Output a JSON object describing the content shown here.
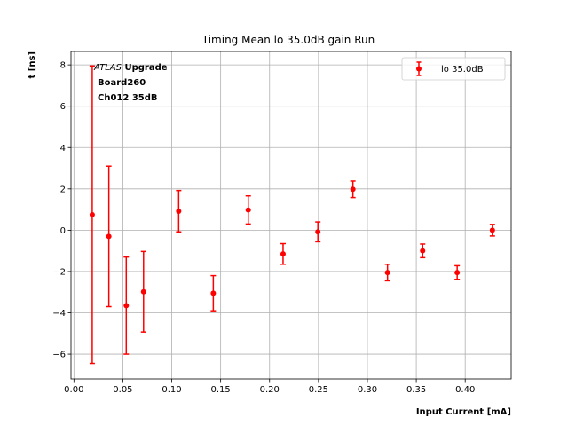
{
  "chart_data": {
    "type": "scatter",
    "title": "Timing Mean lo 35.0dB gain Run",
    "xlabel": "Input Current [mA]",
    "ylabel": "t [ns]",
    "xlim": [
      -0.003,
      0.447
    ],
    "ylim": [
      -7.2,
      8.65
    ],
    "xticks": [
      "0.00",
      "0.05",
      "0.10",
      "0.15",
      "0.20",
      "0.25",
      "0.30",
      "0.35",
      "0.40"
    ],
    "yticks": [
      "−6",
      "−4",
      "−2",
      "0",
      "2",
      "4",
      "6",
      "8"
    ],
    "xtick_values": [
      0.0,
      0.05,
      0.1,
      0.15,
      0.2,
      0.25,
      0.3,
      0.35,
      0.4
    ],
    "ytick_values": [
      -6,
      -4,
      -2,
      0,
      2,
      4,
      6,
      8
    ],
    "grid": true,
    "legend_position": "top-right",
    "series": [
      {
        "name": "lo 35.0dB",
        "color": "#ff0000",
        "marker": "circle",
        "x": [
          0.0187,
          0.0357,
          0.0535,
          0.0712,
          0.1071,
          0.1425,
          0.1782,
          0.2138,
          0.2494,
          0.2852,
          0.3206,
          0.3565,
          0.3918,
          0.4278
        ],
        "y": [
          0.75,
          -0.3,
          -3.65,
          -2.98,
          0.92,
          -3.05,
          0.98,
          -1.15,
          -0.08,
          1.98,
          -2.05,
          -1.0,
          -2.05,
          0.0
        ],
        "yerr": [
          7.2,
          3.4,
          2.35,
          1.95,
          1.0,
          0.85,
          0.68,
          0.5,
          0.48,
          0.4,
          0.4,
          0.33,
          0.33,
          0.28
        ]
      }
    ],
    "annotations": {
      "experiment": "ATLAS",
      "tag": "Upgrade",
      "line2": "Board260",
      "line3": "Ch012 35dB"
    }
  }
}
